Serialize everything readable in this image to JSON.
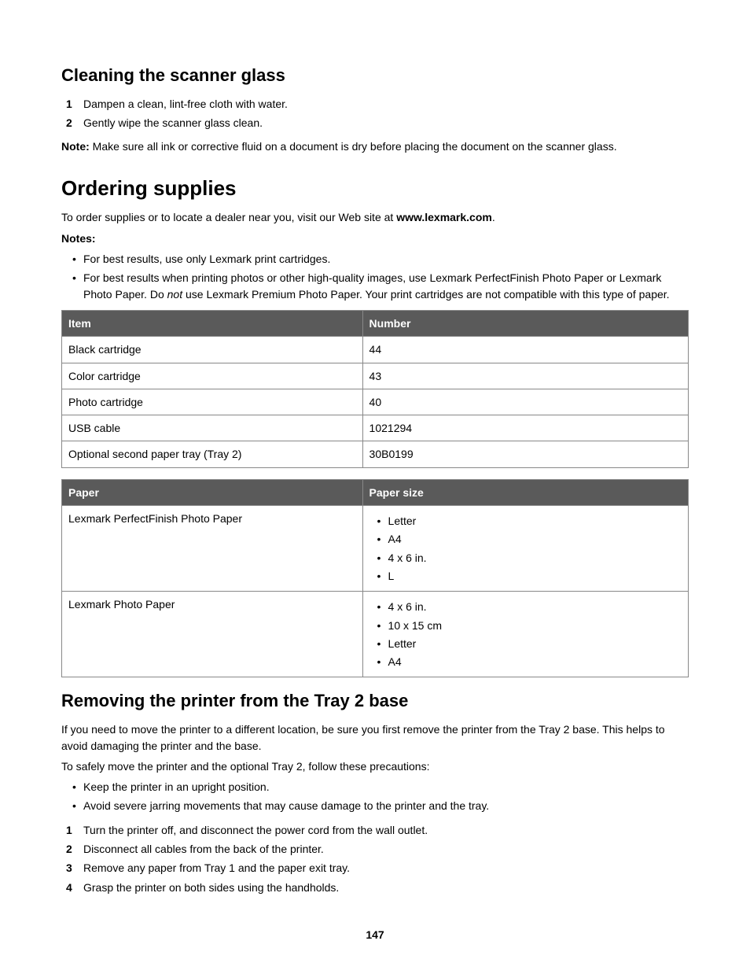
{
  "section1": {
    "title": "Cleaning the scanner glass",
    "steps": [
      "Dampen a clean, lint-free cloth with water.",
      "Gently wipe the scanner glass clean."
    ],
    "note_label": "Note:",
    "note_text": " Make sure all ink or corrective fluid on a document is dry before placing the document on the scanner glass."
  },
  "section2": {
    "title": "Ordering supplies",
    "intro_pre": "To order supplies or to locate a dealer near you, visit our Web site at ",
    "intro_bold": "www.lexmark.com",
    "intro_post": ".",
    "notes_label": "Notes:",
    "notes": [
      {
        "type": "plain",
        "text": "For best results, use only Lexmark print cartridges."
      },
      {
        "type": "rich",
        "pre": "For best results when printing photos or other high-quality images, use Lexmark PerfectFinish Photo Paper or Lexmark Photo Paper. Do ",
        "italic": "not",
        "post": " use Lexmark Premium Photo Paper. Your print cartridges are not compatible with this type of paper."
      }
    ],
    "table1": {
      "headers": [
        "Item",
        "Number"
      ],
      "rows": [
        [
          "Black cartridge",
          "44"
        ],
        [
          "Color cartridge",
          "43"
        ],
        [
          "Photo cartridge",
          "40"
        ],
        [
          "USB cable",
          "1021294"
        ],
        [
          "Optional second paper tray (Tray 2)",
          "30B0199"
        ]
      ]
    },
    "table2": {
      "headers": [
        "Paper",
        "Paper size"
      ],
      "rows": [
        {
          "paper": "Lexmark PerfectFinish Photo Paper",
          "sizes": [
            "Letter",
            "A4",
            "4 x 6 in.",
            "L"
          ]
        },
        {
          "paper": "Lexmark Photo Paper",
          "sizes": [
            "4 x 6 in.",
            "10 x 15 cm",
            "Letter",
            "A4"
          ]
        }
      ]
    }
  },
  "section3": {
    "title": "Removing the printer from the Tray 2 base",
    "intro": "If you need to move the printer to a different location, be sure you first remove the printer from the Tray 2 base. This helps to avoid damaging the printer and the base.",
    "precautions_lead": "To safely move the printer and the optional Tray 2, follow these precautions:",
    "precautions": [
      "Keep the printer in an upright position.",
      "Avoid severe jarring movements that may cause damage to the printer and the tray."
    ],
    "steps": [
      "Turn the printer off, and disconnect the power cord from the wall outlet.",
      "Disconnect all cables from the back of the printer.",
      "Remove any paper from Tray 1 and the paper exit tray.",
      "Grasp the printer on both sides using the handholds."
    ]
  },
  "page_number": "147"
}
